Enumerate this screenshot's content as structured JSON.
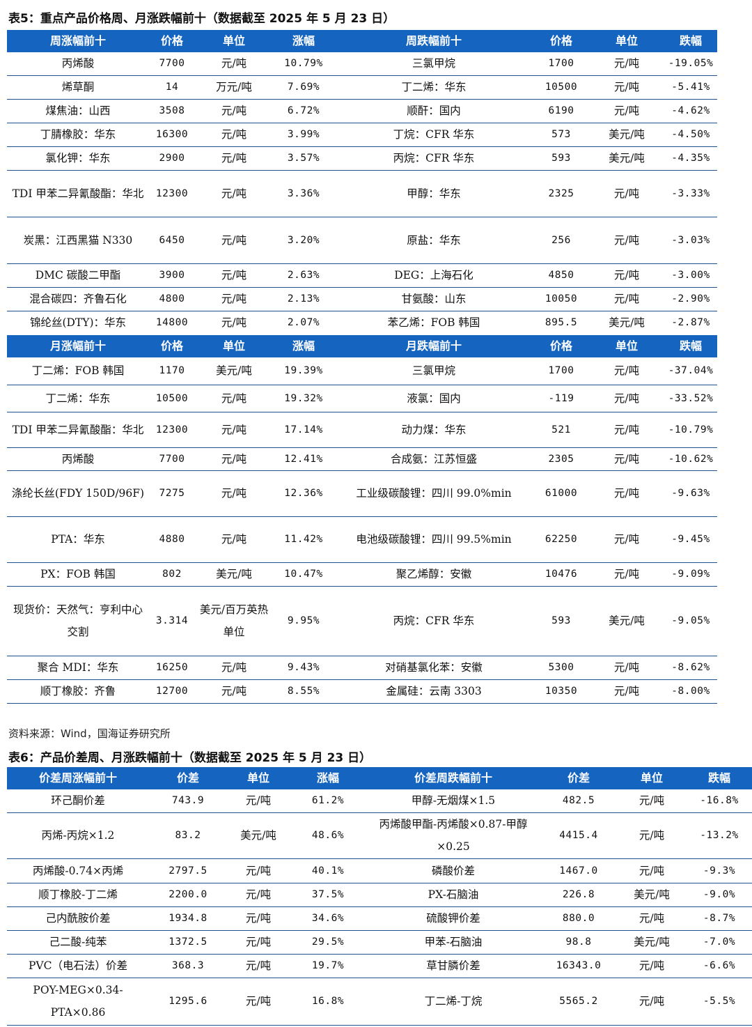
{
  "table5": {
    "title": "表5：重点产品价格周、月涨跌幅前十（数据截至 2025 年 5 月 23 日）",
    "weekly_headers": [
      "周涨幅前十",
      "价格",
      "单位",
      "涨幅",
      "周跌幅前十",
      "价格",
      "单位",
      "跌幅"
    ],
    "weekly_rows": [
      [
        "丙烯酸",
        "7700",
        "元/吨",
        "10.79%",
        "三氯甲烷",
        "1700",
        "元/吨",
        "-19.05%"
      ],
      [
        "烯草酮",
        "14",
        "万元/吨",
        "7.69%",
        "丁二烯：华东",
        "10500",
        "元/吨",
        "-5.41%"
      ],
      [
        "煤焦油：山西",
        "3508",
        "元/吨",
        "6.72%",
        "顺酐：国内",
        "6190",
        "元/吨",
        "-4.62%"
      ],
      [
        "丁腈橡胶：华东",
        "16300",
        "元/吨",
        "3.99%",
        "丁烷：CFR 华东",
        "573",
        "美元/吨",
        "-4.50%"
      ],
      [
        "氯化钾：华东",
        "2900",
        "元/吨",
        "3.57%",
        "丙烷：CFR 华东",
        "593",
        "美元/吨",
        "-4.35%"
      ],
      [
        "TDI 甲苯二异氰酸酯：华北",
        "12300",
        "元/吨",
        "3.36%",
        "甲醇：华东",
        "2325",
        "元/吨",
        "-3.33%"
      ],
      [
        "炭黑：江西黑猫 N330",
        "6450",
        "元/吨",
        "3.20%",
        "原盐：华东",
        "256",
        "元/吨",
        "-3.03%"
      ],
      [
        "DMC 碳酸二甲酯",
        "3900",
        "元/吨",
        "2.63%",
        "DEG：上海石化",
        "4850",
        "元/吨",
        "-3.00%"
      ],
      [
        "混合碳四：齐鲁石化",
        "4800",
        "元/吨",
        "2.13%",
        "甘氨酸：山东",
        "10050",
        "元/吨",
        "-2.90%"
      ],
      [
        "锦纶丝(DTY)：华东",
        "14800",
        "元/吨",
        "2.07%",
        "苯乙烯：FOB 韩国",
        "895.5",
        "美元/吨",
        "-2.87%"
      ]
    ],
    "monthly_headers": [
      "月涨幅前十",
      "价格",
      "单位",
      "涨幅",
      "月跌幅前十",
      "价格",
      "单位",
      "跌幅"
    ],
    "monthly_rows": [
      [
        "丁二烯：FOB 韩国",
        "1170",
        "美元/吨",
        "19.39%",
        "三氯甲烷",
        "1700",
        "元/吨",
        "-37.04%"
      ],
      [
        "丁二烯：华东",
        "10500",
        "元/吨",
        "19.32%",
        "液氯：国内",
        "-119",
        "元/吨",
        "-33.52%"
      ],
      [
        "TDI 甲苯二异氰酸酯：华北",
        "12300",
        "元/吨",
        "17.14%",
        "动力煤：华东",
        "521",
        "元/吨",
        "-10.79%"
      ],
      [
        "丙烯酸",
        "7700",
        "元/吨",
        "12.41%",
        "合成氨：江苏恒盛",
        "2305",
        "元/吨",
        "-10.62%"
      ],
      [
        "涤纶长丝(FDY 150D/96F)",
        "7275",
        "元/吨",
        "12.36%",
        "工业级碳酸锂：四川 99.0%min",
        "61000",
        "元/吨",
        "-9.63%"
      ],
      [
        "PTA：华东",
        "4880",
        "元/吨",
        "11.42%",
        "电池级碳酸锂：四川 99.5%min",
        "62250",
        "元/吨",
        "-9.45%"
      ],
      [
        "PX：FOB 韩国",
        "802",
        "美元/吨",
        "10.47%",
        "聚乙烯醇：安徽",
        "10476",
        "元/吨",
        "-9.09%"
      ],
      [
        "现货价：天然气：亨利中心交割",
        "3.314",
        "美元/百万英热单位",
        "9.95%",
        "丙烷：CFR 华东",
        "593",
        "美元/吨",
        "-9.05%"
      ],
      [
        "聚合 MDI：华东",
        "16250",
        "元/吨",
        "9.43%",
        "对硝基氯化苯：安徽",
        "5300",
        "元/吨",
        "-8.62%"
      ],
      [
        "顺丁橡胶：齐鲁",
        "12700",
        "元/吨",
        "8.55%",
        "金属硅：云南 3303",
        "10350",
        "元/吨",
        "-8.00%"
      ]
    ],
    "source": "资料来源：Wind，国海证券研究所"
  },
  "table6": {
    "title": "表6：产品价差周、月涨跌幅前十（数据截至 2025 年 5 月 23 日）",
    "headers": [
      "价差周涨幅前十",
      "价差",
      "单位",
      "涨幅",
      "价差周跌幅前十",
      "价差",
      "单位",
      "跌幅"
    ],
    "rows": [
      [
        "环己酮价差",
        "743.9",
        "元/吨",
        "61.2%",
        "甲醇-无烟煤×1.5",
        "482.5",
        "元/吨",
        "-16.8%"
      ],
      [
        "丙烯-丙烷×1.2",
        "83.2",
        "美元/吨",
        "48.6%",
        "丙烯酸甲酯-丙烯酸×0.87-甲醇×0.25",
        "4415.4",
        "元/吨",
        "-13.2%"
      ],
      [
        "丙烯酸-0.74×丙烯",
        "2797.5",
        "元/吨",
        "40.1%",
        "磷酸价差",
        "1467.0",
        "元/吨",
        "-9.3%"
      ],
      [
        "顺丁橡胶-丁二烯",
        "2200.0",
        "元/吨",
        "37.5%",
        "PX-石脑油",
        "226.8",
        "美元/吨",
        "-9.0%"
      ],
      [
        "己内酰胺价差",
        "1934.8",
        "元/吨",
        "34.6%",
        "硫酸钾价差",
        "880.0",
        "元/吨",
        "-8.7%"
      ],
      [
        "己二酸-纯苯",
        "1372.5",
        "元/吨",
        "29.5%",
        "甲苯-石脑油",
        "98.8",
        "美元/吨",
        "-7.0%"
      ],
      [
        "PVC（电石法）价差",
        "368.3",
        "元/吨",
        "19.7%",
        "草甘膦价差",
        "16343.0",
        "元/吨",
        "-6.6%"
      ],
      [
        "POY-MEG×0.34-PTA×0.86",
        "1295.6",
        "元/吨",
        "16.8%",
        "丁二烯-丁烷",
        "5565.2",
        "元/吨",
        "-5.5%"
      ]
    ]
  }
}
